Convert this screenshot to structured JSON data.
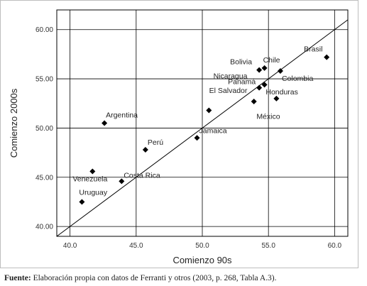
{
  "caption": {
    "prefix": "Fuente:",
    "text": " Elaboración propia con datos de Ferranti y otros (2003, p. 268, Tabla A.3)."
  },
  "chart_data": {
    "type": "scatter",
    "title": "",
    "xlabel": "Comienzo 90s",
    "ylabel": "Comienzo 2000s",
    "xlim": [
      39.0,
      61.0
    ],
    "ylim": [
      39.0,
      62.0
    ],
    "xticks": [
      40.0,
      45.0,
      50.0,
      55.0,
      60.0
    ],
    "yticks": [
      40.0,
      45.0,
      50.0,
      55.0,
      60.0
    ],
    "xtick_labels": [
      "40.0",
      "45.0",
      "50.0",
      "55.0",
      "60.0"
    ],
    "ytick_labels": [
      "40.00",
      "45.00",
      "50.00",
      "55.00",
      "60.00"
    ],
    "grid": true,
    "reference_line": "y = x",
    "marker": "diamond",
    "marker_color": "#000000",
    "points": [
      {
        "label": "Brasil",
        "x": 59.4,
        "y": 57.2
      },
      {
        "label": "Chile",
        "x": 54.7,
        "y": 56.1
      },
      {
        "label": "Bolivia",
        "x": 54.3,
        "y": 55.9
      },
      {
        "label": "Colombia",
        "x": 55.9,
        "y": 55.8
      },
      {
        "label": "Nicaragua",
        "x": 54.7,
        "y": 54.4
      },
      {
        "label": "Panamá",
        "x": 54.3,
        "y": 54.1
      },
      {
        "label": "Honduras",
        "x": 55.6,
        "y": 53.0
      },
      {
        "label": "El Salvador",
        "x": 53.9,
        "y": 52.7
      },
      {
        "label": "México",
        "x": 50.5,
        "y": 51.8
      },
      {
        "label": "Argentina",
        "x": 42.6,
        "y": 50.5
      },
      {
        "label": "Jamaica",
        "x": 49.6,
        "y": 49.0
      },
      {
        "label": "Perú",
        "x": 45.7,
        "y": 47.8
      },
      {
        "label": "Venezuela",
        "x": 41.7,
        "y": 45.6
      },
      {
        "label": "Costa Rica",
        "x": 43.9,
        "y": 44.6
      },
      {
        "label": "Uruguay",
        "x": 40.9,
        "y": 42.5
      }
    ]
  }
}
